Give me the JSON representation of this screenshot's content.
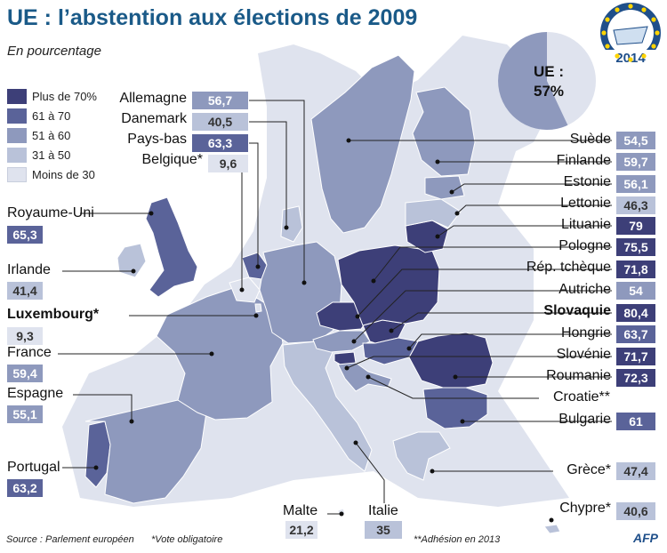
{
  "title": "UE : l’abstention aux élections de 2009",
  "subtitle": "En pourcentage",
  "legend": [
    {
      "label": "Plus de 70%",
      "color": "#3d3f78"
    },
    {
      "label": "61 à 70",
      "color": "#5a6399"
    },
    {
      "label": "51 à 60",
      "color": "#8e99bd"
    },
    {
      "label": "31 à 50",
      "color": "#b9c2d9"
    },
    {
      "label": "Moins de 30",
      "color": "#dfe3ee"
    }
  ],
  "ue": {
    "label": "UE :",
    "value": "57%",
    "share": 57
  },
  "logo": {
    "year": "2014"
  },
  "countries": [
    {
      "key": "allemagne",
      "name": "Allemagne",
      "value": "56,7",
      "cat": 2
    },
    {
      "key": "danemark",
      "name": "Danemark",
      "value": "40,5",
      "cat": 3
    },
    {
      "key": "paysbas",
      "name": "Pays-bas",
      "value": "63,3",
      "cat": 1
    },
    {
      "key": "belgique",
      "name": "Belgique*",
      "value": "9,6",
      "cat": 4
    },
    {
      "key": "royaumeuni",
      "name": "Royaume-Uni",
      "value": "65,3",
      "cat": 1
    },
    {
      "key": "irlande",
      "name": "Irlande",
      "value": "41,4",
      "cat": 3
    },
    {
      "key": "luxembourg",
      "name": "Luxembourg*",
      "value": "9,3",
      "cat": 4
    },
    {
      "key": "france",
      "name": "France",
      "value": "59,4",
      "cat": 2
    },
    {
      "key": "espagne",
      "name": "Espagne",
      "value": "55,1",
      "cat": 2
    },
    {
      "key": "portugal",
      "name": "Portugal",
      "value": "63,2",
      "cat": 1
    },
    {
      "key": "malte",
      "name": "Malte",
      "value": "21,2",
      "cat": 4
    },
    {
      "key": "italie",
      "name": "Italie",
      "value": "35",
      "cat": 3
    },
    {
      "key": "suede",
      "name": "Suède",
      "value": "54,5",
      "cat": 2
    },
    {
      "key": "finlande",
      "name": "Finlande",
      "value": "59,7",
      "cat": 2
    },
    {
      "key": "estonie",
      "name": "Estonie",
      "value": "56,1",
      "cat": 2
    },
    {
      "key": "lettonie",
      "name": "Lettonie",
      "value": "46,3",
      "cat": 3
    },
    {
      "key": "lituanie",
      "name": "Lituanie",
      "value": "79",
      "cat": 0
    },
    {
      "key": "pologne",
      "name": "Pologne",
      "value": "75,5",
      "cat": 0
    },
    {
      "key": "reptcheque",
      "name": "Rép. tchèque",
      "value": "71,8",
      "cat": 0
    },
    {
      "key": "autriche",
      "name": "Autriche",
      "value": "54",
      "cat": 2
    },
    {
      "key": "slovaquie",
      "name": "Slovaquie",
      "value": "80,4",
      "cat": 0
    },
    {
      "key": "hongrie",
      "name": "Hongrie",
      "value": "63,7",
      "cat": 1
    },
    {
      "key": "slovenie",
      "name": "Slovénie",
      "value": "71,7",
      "cat": 0
    },
    {
      "key": "roumanie",
      "name": "Roumanie",
      "value": "72,3",
      "cat": 0
    },
    {
      "key": "croatie",
      "name": "Croatie**",
      "value": "",
      "cat": 2
    },
    {
      "key": "bulgarie",
      "name": "Bulgarie",
      "value": "61",
      "cat": 1
    },
    {
      "key": "grece",
      "name": "Grèce*",
      "value": "47,4",
      "cat": 3
    },
    {
      "key": "chypre",
      "name": "Chypre*",
      "value": "40,6",
      "cat": 3
    }
  ],
  "footer": {
    "source": "Source : Parlement européen",
    "vote": "*Vote obligatoire",
    "adhesion": "**Adhésion en 2013",
    "credit": "AFP"
  }
}
